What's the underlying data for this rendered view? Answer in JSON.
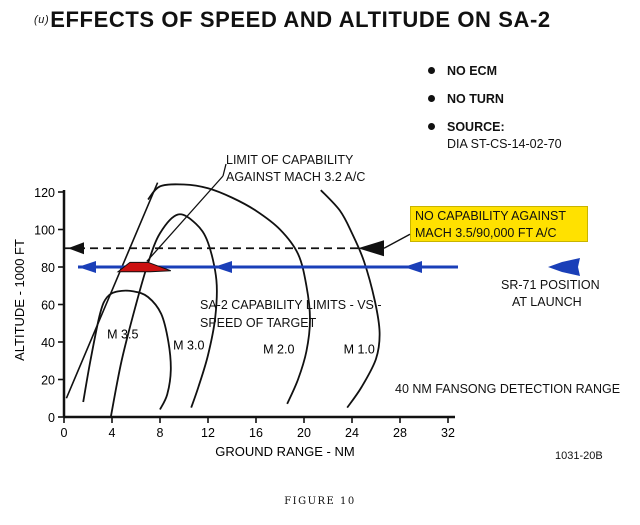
{
  "title": {
    "marking": "(u)",
    "text": "EFFECTS OF SPEED AND ALTITUDE ON SA-2"
  },
  "conditions": [
    {
      "bullet_icon": "bullet-dot-icon",
      "text": "NO ECM"
    },
    {
      "bullet_icon": "bullet-dot-icon",
      "text": "NO TURN"
    },
    {
      "bullet_icon": "bullet-dot-icon",
      "text": "SOURCE:",
      "subtext": "DIA ST-CS-14-02-70"
    }
  ],
  "annotations": {
    "limit_label_line1": "LIMIT OF CAPABILITY",
    "limit_label_line2": "AGAINST MACH 3.2 A/C",
    "no_capability_line1": "NO CAPABILITY AGAINST",
    "no_capability_line2": "MACH 3.5/90,000 FT A/C",
    "sr71_line1": "SR-71 POSITION",
    "sr71_line2": "AT LAUNCH",
    "sa2_line1": "SA-2 CAPABILITY LIMITS - VS -",
    "sa2_line2": "SPEED OF TARGET",
    "fansong": "40 NM FANSONG DETECTION RANGE",
    "doc_code": "1031-20B",
    "figure_caption": "FIGURE 10"
  },
  "colors": {
    "arrow_blue": "#1a3fb8",
    "callout_yellow": "#ffe100",
    "limit_red": "#cc1111",
    "ink": "#111111"
  },
  "chart_data": {
    "type": "line",
    "xlabel": "GROUND RANGE - NM",
    "ylabel": "ALTITUDE - 1000 FT",
    "xlim": [
      0,
      32
    ],
    "ylim": [
      0,
      120
    ],
    "xticks": [
      0,
      4,
      8,
      12,
      16,
      20,
      24,
      28,
      32
    ],
    "yticks": [
      0,
      20,
      40,
      60,
      80,
      100,
      120
    ],
    "series": [
      {
        "name": "M 3.5",
        "points": [
          [
            8.0,
            4
          ],
          [
            8.6,
            12
          ],
          [
            8.9,
            25
          ],
          [
            8.7,
            40
          ],
          [
            8.1,
            55
          ],
          [
            7.0,
            64
          ],
          [
            5.8,
            67
          ],
          [
            4.5,
            67
          ],
          [
            3.6,
            64
          ],
          [
            3.0,
            55
          ],
          [
            2.2,
            30
          ],
          [
            1.6,
            8
          ]
        ]
      },
      {
        "name": "M 3.0",
        "points": [
          [
            3.9,
            0
          ],
          [
            4.8,
            30
          ],
          [
            6.0,
            60
          ],
          [
            7.0,
            82
          ],
          [
            8.0,
            98
          ],
          [
            9.5,
            108
          ],
          [
            11.0,
            103
          ],
          [
            12.0,
            93
          ],
          [
            12.7,
            73
          ],
          [
            12.6,
            53
          ],
          [
            12.0,
            33
          ],
          [
            11.2,
            16
          ],
          [
            10.6,
            5
          ]
        ]
      },
      {
        "name": "M 2.0",
        "points": [
          [
            7.0,
            116
          ],
          [
            8.0,
            123
          ],
          [
            10.0,
            124
          ],
          [
            12.0,
            122
          ],
          [
            14.0,
            117
          ],
          [
            16.0,
            110
          ],
          [
            18.0,
            100
          ],
          [
            19.5,
            87
          ],
          [
            20.2,
            70
          ],
          [
            20.5,
            52
          ],
          [
            20.2,
            35
          ],
          [
            19.5,
            20
          ],
          [
            18.6,
            7
          ]
        ]
      },
      {
        "name": "M 1.0",
        "points": [
          [
            21.4,
            121
          ],
          [
            23.0,
            110
          ],
          [
            24.0,
            98
          ],
          [
            25.0,
            83
          ],
          [
            25.9,
            62
          ],
          [
            26.3,
            45
          ],
          [
            26.0,
            31
          ],
          [
            24.8,
            16
          ],
          [
            23.6,
            5
          ]
        ]
      }
    ],
    "envelope_line": {
      "points": [
        [
          0.2,
          10
        ],
        [
          7.8,
          125
        ]
      ]
    },
    "limit_region": {
      "x": [
        5.5,
        7.0,
        8.9,
        7.2,
        4.5
      ],
      "y": [
        82.5,
        82.5,
        78,
        77.5,
        77.5
      ]
    },
    "no_capability_altitude": 90,
    "attack_altitude": 80
  }
}
